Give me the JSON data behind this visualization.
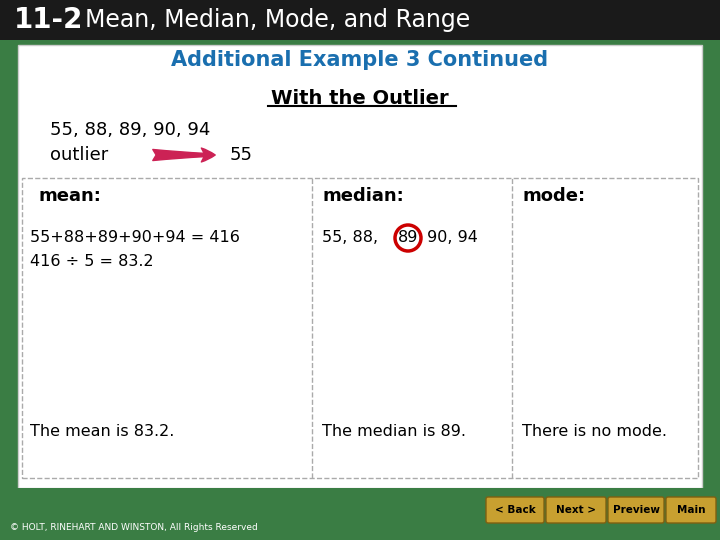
{
  "header_bg": "#1a1a1a",
  "header_number": "11-2",
  "header_title": "Mean, Median, Mode, and Range",
  "main_bg": "#ffffff",
  "outer_bg": "#3a7d44",
  "subtitle": "Additional Example 3 Continued",
  "subtitle_color": "#1a6faf",
  "section_title": "With the Outlier",
  "data_line": "55, 88, 89, 90, 94",
  "outlier_label": "outlier",
  "outlier_value": "55",
  "arrow_color": "#cc2255",
  "col1_header": "mean:",
  "col2_header": "median:",
  "col3_header": "mode:",
  "col1_line1": "55+88+89+90+94 = 416",
  "col1_line2": "416 ÷ 5 = 83.2",
  "col1_line3": "The mean is 83.2.",
  "col2_line3": "The median is 89.",
  "col3_line3": "There is no mode.",
  "circle_color": "#cc0000",
  "footer_bg": "#3a7d44",
  "footer_text": "© HOLT, RINEHART AND WINSTON, All Rights Reserved",
  "btn_color": "#c8a030",
  "btn_labels": [
    "< Back",
    "Next >",
    "Preview",
    "Main"
  ]
}
